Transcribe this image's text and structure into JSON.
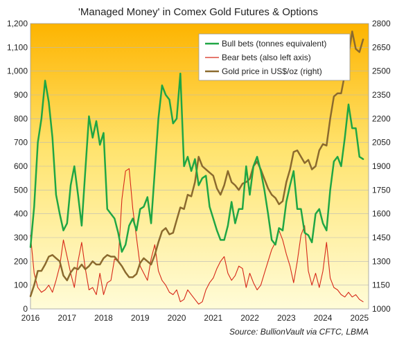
{
  "chart_data": {
    "type": "line",
    "title": "'Managed Money' in Comex Gold Futures & Options",
    "source": "Source: BullionVault via CFTC, LBMA",
    "x_range": [
      "2016-01-01",
      "2025-03-31"
    ],
    "x_ticks": [
      "2016",
      "2017",
      "2018",
      "2019",
      "2020",
      "2021",
      "2022",
      "2023",
      "2024",
      "2025"
    ],
    "y_left": {
      "ylim": [
        0,
        1200
      ],
      "ticks": [
        "0",
        "100",
        "200",
        "300",
        "400",
        "500",
        "600",
        "700",
        "800",
        "900",
        "1,000",
        "1,100",
        "1,200"
      ]
    },
    "y_right": {
      "ylim": [
        1000,
        2800
      ],
      "ticks": [
        "1000",
        "1150",
        "1300",
        "1450",
        "1600",
        "1750",
        "1900",
        "2050",
        "2200",
        "2350",
        "2500",
        "2650",
        "2800"
      ]
    },
    "legend": {
      "position": "top-right",
      "entries": [
        "Bull bets (tonnes equivalent)",
        "Bear bets (also left axis)",
        "Gold price in US$/oz (right)"
      ]
    },
    "colors": {
      "bull": "#1fa644",
      "bear": "#d62718",
      "gold": "#8b6a2e",
      "bg_top": "#fdb400",
      "bg_bottom": "#fffcd8"
    },
    "series": [
      {
        "name": "Bull bets (tonnes equivalent)",
        "axis": "left",
        "color": "#1fa644",
        "x": [
          2016.0,
          2016.1,
          2016.2,
          2016.3,
          2016.4,
          2016.5,
          2016.6,
          2016.7,
          2016.8,
          2016.9,
          2017.0,
          2017.1,
          2017.2,
          2017.3,
          2017.4,
          2017.5,
          2017.6,
          2017.7,
          2017.8,
          2017.9,
          2018.0,
          2018.1,
          2018.2,
          2018.3,
          2018.4,
          2018.5,
          2018.6,
          2018.7,
          2018.8,
          2018.9,
          2019.0,
          2019.1,
          2019.2,
          2019.3,
          2019.4,
          2019.5,
          2019.6,
          2019.7,
          2019.8,
          2019.9,
          2020.0,
          2020.1,
          2020.2,
          2020.3,
          2020.4,
          2020.5,
          2020.6,
          2020.7,
          2020.8,
          2020.9,
          2021.0,
          2021.1,
          2021.2,
          2021.3,
          2021.4,
          2021.5,
          2021.6,
          2021.7,
          2021.8,
          2021.9,
          2022.0,
          2022.1,
          2022.2,
          2022.3,
          2022.4,
          2022.5,
          2022.6,
          2022.7,
          2022.8,
          2022.9,
          2023.0,
          2023.1,
          2023.2,
          2023.3,
          2023.4,
          2023.5,
          2023.6,
          2023.7,
          2023.8,
          2023.9,
          2024.0,
          2024.1,
          2024.2,
          2024.3,
          2024.4,
          2024.5,
          2024.6,
          2024.7,
          2024.8,
          2024.9,
          2025.0,
          2025.1
        ],
        "values": [
          260,
          430,
          700,
          800,
          960,
          870,
          720,
          480,
          400,
          330,
          360,
          520,
          600,
          480,
          350,
          580,
          810,
          720,
          790,
          690,
          740,
          420,
          400,
          380,
          320,
          240,
          270,
          350,
          380,
          330,
          420,
          430,
          470,
          360,
          580,
          800,
          940,
          900,
          880,
          780,
          800,
          990,
          600,
          640,
          580,
          630,
          520,
          550,
          560,
          430,
          380,
          330,
          290,
          290,
          350,
          450,
          360,
          420,
          420,
          600,
          480,
          600,
          640,
          580,
          500,
          400,
          290,
          270,
          340,
          330,
          450,
          520,
          580,
          420,
          420,
          320,
          310,
          280,
          400,
          420,
          360,
          330,
          500,
          620,
          640,
          600,
          720,
          860,
          760,
          760,
          640,
          630
        ]
      },
      {
        "name": "Bear bets (also left axis)",
        "axis": "left",
        "color": "#d62718",
        "x": [
          2016.0,
          2016.1,
          2016.2,
          2016.3,
          2016.4,
          2016.5,
          2016.6,
          2016.7,
          2016.8,
          2016.9,
          2017.0,
          2017.1,
          2017.2,
          2017.3,
          2017.4,
          2017.5,
          2017.6,
          2017.7,
          2017.8,
          2017.9,
          2018.0,
          2018.1,
          2018.2,
          2018.3,
          2018.4,
          2018.5,
          2018.6,
          2018.7,
          2018.8,
          2018.9,
          2019.0,
          2019.1,
          2019.2,
          2019.3,
          2019.4,
          2019.5,
          2019.6,
          2019.7,
          2019.8,
          2019.9,
          2020.0,
          2020.1,
          2020.2,
          2020.3,
          2020.4,
          2020.5,
          2020.6,
          2020.7,
          2020.8,
          2020.9,
          2021.0,
          2021.1,
          2021.2,
          2021.3,
          2021.4,
          2021.5,
          2021.6,
          2021.7,
          2021.8,
          2021.9,
          2022.0,
          2022.1,
          2022.2,
          2022.3,
          2022.4,
          2022.5,
          2022.6,
          2022.7,
          2022.8,
          2022.9,
          2023.0,
          2023.1,
          2023.2,
          2023.3,
          2023.4,
          2023.5,
          2023.6,
          2023.7,
          2023.8,
          2023.9,
          2024.0,
          2024.1,
          2024.2,
          2024.3,
          2024.4,
          2024.5,
          2024.6,
          2024.7,
          2024.8,
          2024.9,
          2025.0,
          2025.1
        ],
        "values": [
          310,
          150,
          90,
          70,
          80,
          100,
          70,
          120,
          180,
          290,
          220,
          150,
          90,
          200,
          280,
          170,
          80,
          90,
          60,
          150,
          60,
          110,
          120,
          210,
          200,
          460,
          580,
          590,
          420,
          300,
          180,
          150,
          120,
          210,
          270,
          160,
          120,
          100,
          70,
          60,
          80,
          30,
          40,
          80,
          60,
          40,
          20,
          30,
          80,
          110,
          130,
          170,
          200,
          220,
          150,
          120,
          140,
          180,
          170,
          90,
          150,
          110,
          80,
          100,
          150,
          200,
          250,
          280,
          330,
          290,
          230,
          180,
          110,
          200,
          310,
          350,
          160,
          100,
          150,
          90,
          160,
          280,
          130,
          90,
          80,
          60,
          50,
          70,
          50,
          60,
          40,
          30
        ]
      },
      {
        "name": "Gold price in US$/oz (right)",
        "axis": "right",
        "color": "#8b6a2e",
        "x": [
          2016.0,
          2016.1,
          2016.2,
          2016.3,
          2016.4,
          2016.5,
          2016.6,
          2016.7,
          2016.8,
          2016.9,
          2017.0,
          2017.1,
          2017.2,
          2017.3,
          2017.4,
          2017.5,
          2017.6,
          2017.7,
          2017.8,
          2017.9,
          2018.0,
          2018.1,
          2018.2,
          2018.3,
          2018.4,
          2018.5,
          2018.6,
          2018.7,
          2018.8,
          2018.9,
          2019.0,
          2019.1,
          2019.2,
          2019.3,
          2019.4,
          2019.5,
          2019.6,
          2019.7,
          2019.8,
          2019.9,
          2020.0,
          2020.1,
          2020.2,
          2020.3,
          2020.4,
          2020.5,
          2020.6,
          2020.7,
          2020.8,
          2020.9,
          2021.0,
          2021.1,
          2021.2,
          2021.3,
          2021.4,
          2021.5,
          2021.6,
          2021.7,
          2021.8,
          2021.9,
          2022.0,
          2022.1,
          2022.2,
          2022.3,
          2022.4,
          2022.5,
          2022.6,
          2022.7,
          2022.8,
          2022.9,
          2023.0,
          2023.1,
          2023.2,
          2023.3,
          2023.4,
          2023.5,
          2023.6,
          2023.7,
          2023.8,
          2023.9,
          2024.0,
          2024.1,
          2024.2,
          2024.3,
          2024.4,
          2024.5,
          2024.6,
          2024.7,
          2024.8,
          2024.9,
          2025.0,
          2025.1
        ],
        "values": [
          1080,
          1150,
          1240,
          1240,
          1280,
          1330,
          1340,
          1320,
          1300,
          1210,
          1180,
          1230,
          1260,
          1250,
          1280,
          1250,
          1270,
          1300,
          1280,
          1280,
          1320,
          1340,
          1330,
          1330,
          1300,
          1270,
          1230,
          1200,
          1200,
          1220,
          1290,
          1320,
          1300,
          1280,
          1340,
          1420,
          1490,
          1510,
          1470,
          1480,
          1560,
          1640,
          1630,
          1720,
          1710,
          1800,
          1960,
          1900,
          1880,
          1860,
          1840,
          1760,
          1720,
          1780,
          1870,
          1800,
          1780,
          1750,
          1790,
          1800,
          1820,
          1900,
          1930,
          1880,
          1820,
          1760,
          1720,
          1700,
          1660,
          1680,
          1800,
          1880,
          1990,
          2000,
          1960,
          1920,
          1940,
          1880,
          1900,
          2000,
          2040,
          2030,
          2200,
          2340,
          2360,
          2360,
          2480,
          2600,
          2750,
          2640,
          2620,
          2700
        ]
      }
    ]
  }
}
